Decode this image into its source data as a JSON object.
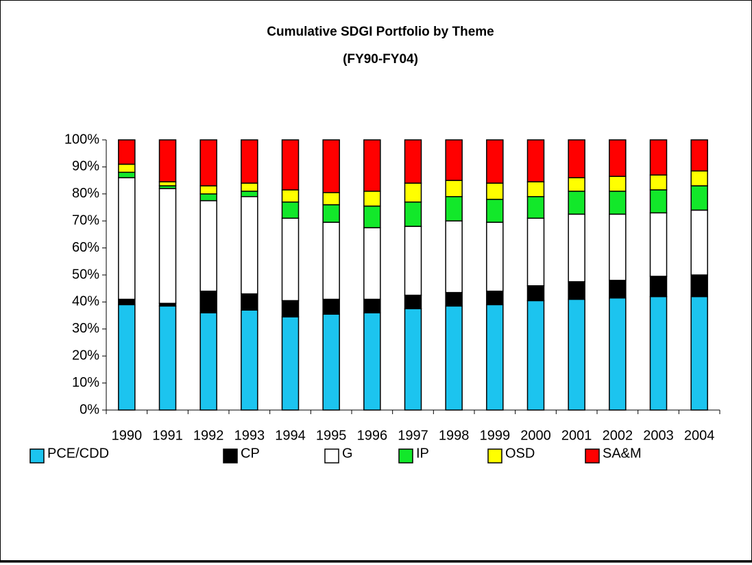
{
  "chart_data": {
    "type": "stacked_bar",
    "title": "Cumulative SDGI Portfolio by Theme",
    "subtitle": "(FY90-FY04)",
    "categories": [
      "1990",
      "1991",
      "1992",
      "1993",
      "1994",
      "1995",
      "1996",
      "1997",
      "1998",
      "1999",
      "2000",
      "2001",
      "2002",
      "2003",
      "2004"
    ],
    "series": [
      {
        "name": "PCE/CDD",
        "color": "#1cc4ef",
        "values": [
          39,
          38.5,
          36,
          37,
          34.5,
          35.5,
          36,
          37.5,
          38.5,
          39,
          40.5,
          41,
          41.5,
          42,
          42
        ]
      },
      {
        "name": "CP",
        "color": "#000000",
        "values": [
          2,
          1,
          8,
          6,
          6,
          5.5,
          5,
          5,
          5,
          5,
          5.5,
          6.5,
          6.5,
          7.5,
          8
        ]
      },
      {
        "name": "G",
        "color": "#ffffff",
        "values": [
          45,
          42.5,
          33.5,
          36,
          30.5,
          28.5,
          26.5,
          25.5,
          26.5,
          25.5,
          25,
          25,
          24.5,
          23.5,
          24
        ]
      },
      {
        "name": "IP",
        "color": "#12e82a",
        "values": [
          2,
          1,
          2.5,
          2,
          6,
          6.5,
          8,
          9,
          9,
          8.5,
          8,
          8.5,
          8.5,
          8.5,
          9
        ]
      },
      {
        "name": "OSD",
        "color": "#ffff00",
        "values": [
          3,
          1.5,
          3,
          3,
          4.5,
          4.5,
          5.5,
          7,
          6,
          6,
          5.5,
          5,
          5.5,
          5.5,
          5.5
        ]
      },
      {
        "name": "SA&M",
        "color": "#ff0000",
        "values": [
          9,
          15.5,
          17,
          16,
          18.5,
          19.5,
          19,
          16,
          15,
          16,
          15.5,
          14,
          13.5,
          13,
          11.5
        ]
      }
    ],
    "ylim": [
      0,
      100
    ],
    "yticks": [
      {
        "value": 0,
        "label": "0%"
      },
      {
        "value": 10,
        "label": "10%"
      },
      {
        "value": 20,
        "label": "20%"
      },
      {
        "value": 30,
        "label": "30%"
      },
      {
        "value": 40,
        "label": "40%"
      },
      {
        "value": 50,
        "label": "50%"
      },
      {
        "value": 60,
        "label": "60%"
      },
      {
        "value": 70,
        "label": "70%"
      },
      {
        "value": 80,
        "label": "80%"
      },
      {
        "value": 90,
        "label": "90%"
      },
      {
        "value": 100,
        "label": "100%"
      }
    ],
    "legend": "bottom"
  }
}
